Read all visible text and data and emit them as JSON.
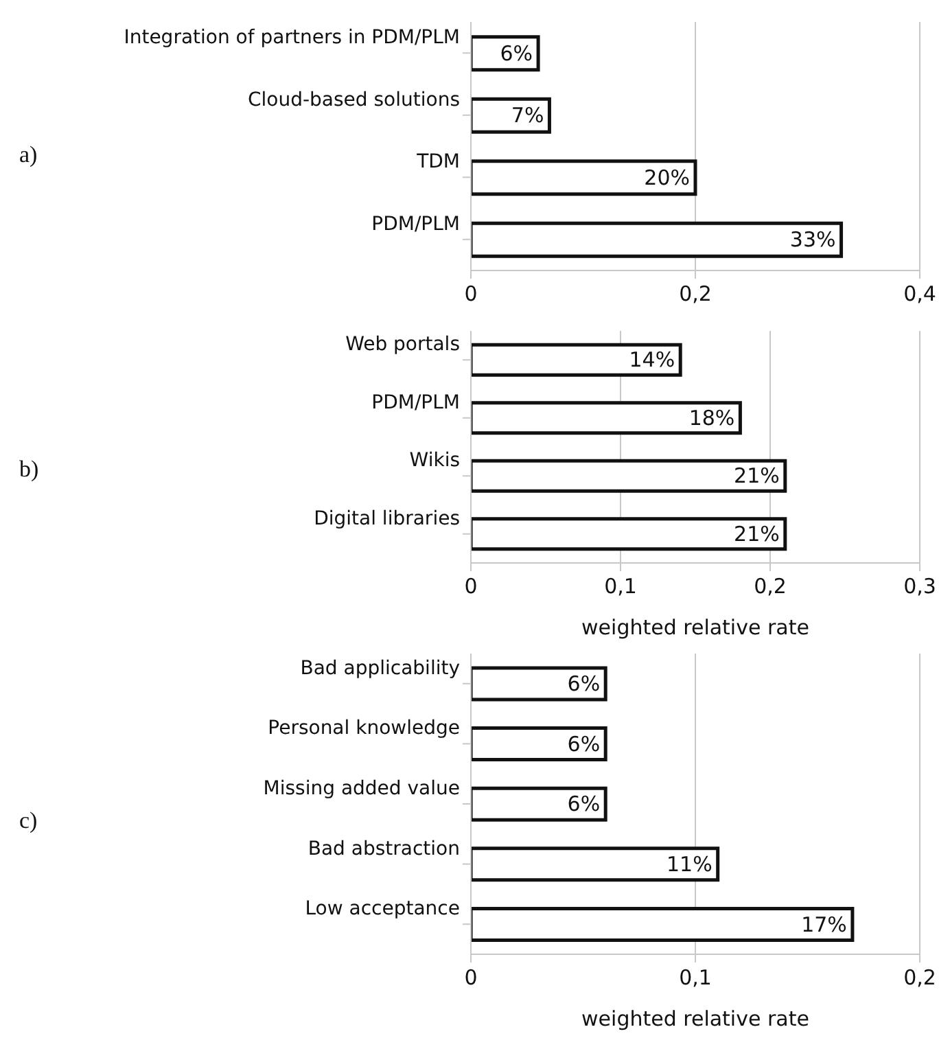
{
  "chart_data": [
    {
      "type": "bar",
      "orientation": "horizontal",
      "categories": [
        "Integration of partners in PDM/PLM",
        "Cloud-based solutions",
        "TDM",
        "PDM/PLM"
      ],
      "values": [
        0.06,
        0.07,
        0.2,
        0.33
      ],
      "value_labels": [
        "6%",
        "7%",
        "20%",
        "33%"
      ],
      "color": "#ffffff",
      "xlim": [
        0,
        0.4
      ],
      "xticks": [
        {
          "value": 0,
          "label": "0"
        },
        {
          "value": 0.2,
          "label": "0,2"
        },
        {
          "value": 0.4,
          "label": "0,4"
        }
      ],
      "grid": "x",
      "annotations": [
        "a)"
      ]
    },
    {
      "type": "bar",
      "orientation": "horizontal",
      "categories": [
        "Web portals",
        "PDM/PLM",
        "Wikis",
        "Digital libraries"
      ],
      "values": [
        0.14,
        0.18,
        0.21,
        0.21
      ],
      "value_labels": [
        "14%",
        "18%",
        "21%",
        "21%"
      ],
      "color": "#ffffff",
      "xlim": [
        0,
        0.3
      ],
      "xticks": [
        {
          "value": 0,
          "label": "0"
        },
        {
          "value": 0.1,
          "label": "0,1"
        },
        {
          "value": 0.2,
          "label": "0,2"
        },
        {
          "value": 0.3,
          "label": "0,3"
        }
      ],
      "xlabel": "weighted relative rate",
      "grid": "x",
      "annotations": [
        "b)"
      ]
    },
    {
      "type": "bar",
      "orientation": "horizontal",
      "categories": [
        "Bad applicability",
        "Personal knowledge",
        "Missing added value",
        "Bad abstraction",
        "Low acceptance"
      ],
      "values": [
        0.06,
        0.06,
        0.06,
        0.11,
        0.17
      ],
      "value_labels": [
        "6%",
        "6%",
        "6%",
        "11%",
        "17%"
      ],
      "color": "#ffffff",
      "xlim": [
        0,
        0.2
      ],
      "xticks": [
        {
          "value": 0,
          "label": "0"
        },
        {
          "value": 0.1,
          "label": "0,1"
        },
        {
          "value": 0.2,
          "label": "0,2"
        }
      ],
      "xlabel": "weighted relative rate",
      "grid": "x",
      "annotations": [
        "c)"
      ]
    }
  ]
}
